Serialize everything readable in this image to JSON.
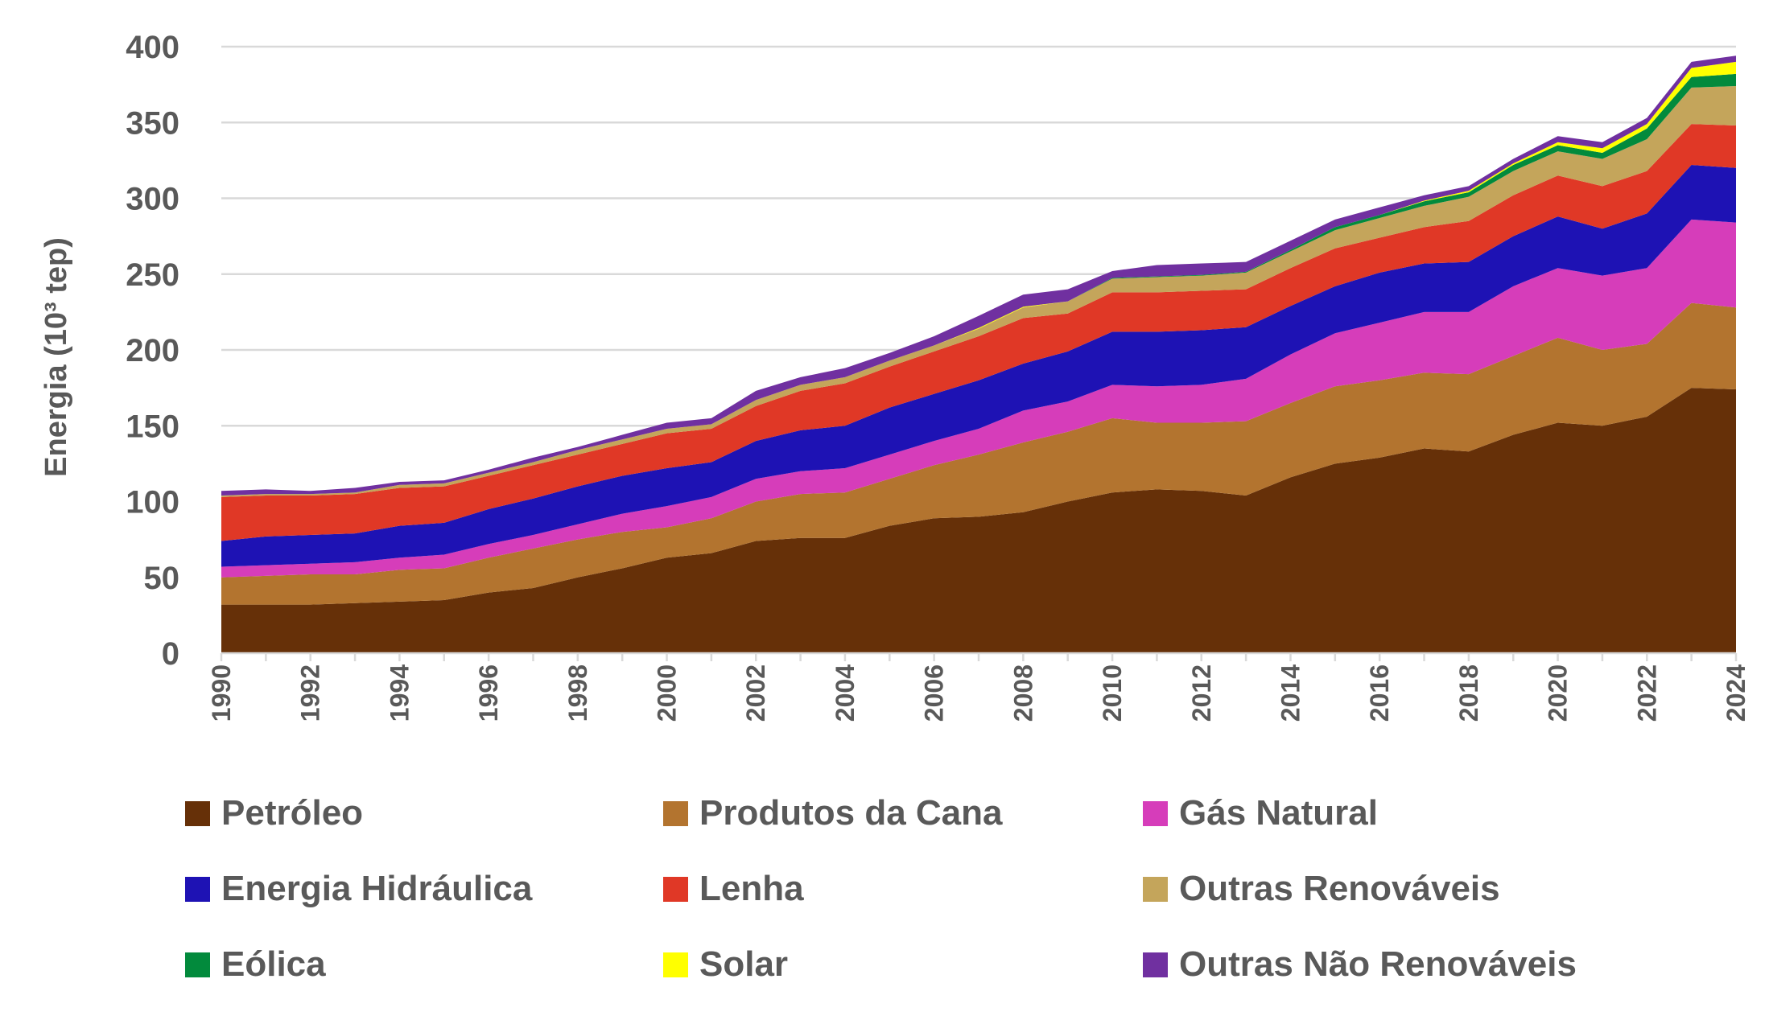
{
  "chart_data": {
    "type": "area",
    "stacked": true,
    "title": "",
    "xlabel": "",
    "ylabel": "Energia (10³ tep)",
    "ylim": [
      0,
      400
    ],
    "yticks": [
      0,
      50,
      100,
      150,
      200,
      250,
      300,
      350,
      400
    ],
    "xticks": [
      1990,
      1992,
      1994,
      1996,
      1998,
      2000,
      2002,
      2004,
      2006,
      2008,
      2010,
      2012,
      2014,
      2016,
      2018,
      2020,
      2022,
      2024
    ],
    "grid": true,
    "legend_position": "bottom",
    "x": [
      1990,
      1991,
      1992,
      1993,
      1994,
      1995,
      1996,
      1997,
      1998,
      1999,
      2000,
      2001,
      2002,
      2003,
      2004,
      2005,
      2006,
      2007,
      2008,
      2009,
      2010,
      2011,
      2012,
      2013,
      2014,
      2015,
      2016,
      2017,
      2018,
      2019,
      2020,
      2021,
      2022,
      2023,
      2024
    ],
    "series": [
      {
        "name": "Petróleo",
        "color": "#663008",
        "values": [
          32,
          32,
          32,
          33,
          34,
          35,
          40,
          43,
          50,
          56,
          63,
          66,
          74,
          76,
          76,
          84,
          89,
          90,
          93,
          100,
          106,
          108,
          107,
          104,
          116,
          125,
          129,
          135,
          133,
          144,
          152,
          150,
          156,
          175,
          174
        ]
      },
      {
        "name": "Produtos da Cana",
        "color": "#B3742F",
        "values": [
          18,
          19,
          20,
          19,
          21,
          21,
          23,
          26,
          25,
          24,
          20,
          23,
          26,
          29,
          30,
          31,
          35,
          41,
          46,
          46,
          49,
          44,
          45,
          49,
          49,
          51,
          51,
          50,
          51,
          52,
          56,
          50,
          48,
          56,
          54
        ]
      },
      {
        "name": "Gás Natural",
        "color": "#D63DBA",
        "values": [
          7,
          7,
          7,
          8,
          8,
          9,
          9,
          9,
          10,
          12,
          14,
          14,
          15,
          15,
          16,
          16,
          16,
          17,
          21,
          20,
          22,
          24,
          25,
          28,
          32,
          35,
          38,
          40,
          41,
          46,
          46,
          49,
          50,
          55,
          56
        ]
      },
      {
        "name": "Energia Hidráulica",
        "color": "#1E12B4",
        "values": [
          17,
          19,
          19,
          19,
          21,
          21,
          23,
          24,
          25,
          25,
          25,
          23,
          25,
          27,
          28,
          31,
          31,
          32,
          31,
          33,
          35,
          36,
          36,
          34,
          32,
          31,
          33,
          32,
          33,
          33,
          34,
          31,
          36,
          36,
          36
        ]
      },
      {
        "name": "Lenha",
        "color": "#E03826",
        "values": [
          29,
          27,
          26,
          26,
          25,
          24,
          22,
          22,
          21,
          21,
          23,
          22,
          23,
          26,
          28,
          27,
          28,
          29,
          30,
          25,
          26,
          26,
          26,
          25,
          25,
          25,
          23,
          24,
          27,
          27,
          27,
          28,
          28,
          27,
          28
        ]
      },
      {
        "name": "Outras Renováveis",
        "color": "#C4A55B",
        "values": [
          1,
          1,
          1,
          1,
          2,
          2,
          2,
          2,
          3,
          3,
          3,
          3,
          4,
          4,
          4,
          4,
          4,
          5,
          7,
          8,
          9,
          10,
          10,
          11,
          11,
          12,
          13,
          14,
          16,
          16,
          16,
          18,
          21,
          24,
          26
        ]
      },
      {
        "name": "Eólica",
        "color": "#028A3C",
        "values": [
          0,
          0,
          0,
          0,
          0,
          0,
          0,
          0,
          0,
          0,
          0,
          0,
          0,
          0,
          0,
          0,
          0,
          0,
          0,
          0,
          0.5,
          0.5,
          0.5,
          0.5,
          1,
          2,
          2,
          3,
          3,
          4,
          4,
          4,
          7,
          7,
          8
        ]
      },
      {
        "name": "Solar",
        "color": "#FFFF00",
        "values": [
          0,
          0,
          0,
          0,
          0,
          0,
          0,
          0,
          0,
          0,
          0,
          0,
          0,
          0,
          0,
          0,
          0,
          0.5,
          0.5,
          0,
          0,
          0,
          0,
          0,
          0,
          0,
          0,
          0.5,
          1,
          1,
          2,
          3,
          3,
          6,
          8
        ]
      },
      {
        "name": "Outras Não Renováveis",
        "color": "#7030A0",
        "values": [
          3,
          3,
          2,
          3,
          2,
          2,
          2,
          3,
          2,
          3,
          4,
          4,
          6,
          5,
          6,
          5,
          6,
          8,
          8,
          8,
          4.5,
          7.5,
          7.5,
          6.5,
          6,
          5,
          5,
          3.5,
          3,
          3,
          4,
          4,
          4,
          4,
          4
        ]
      }
    ]
  }
}
